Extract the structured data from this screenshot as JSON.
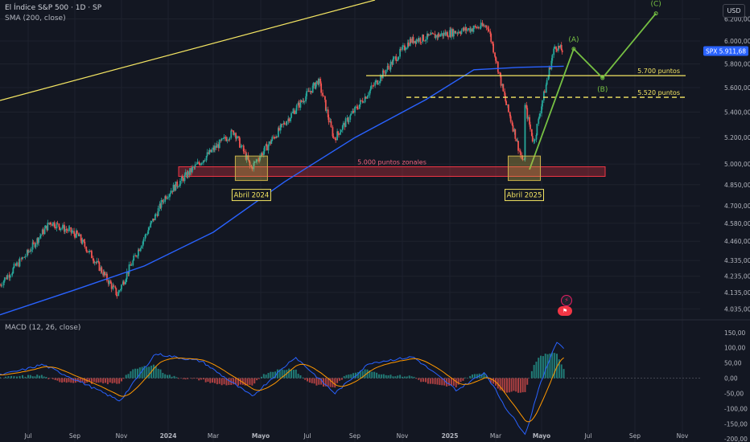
{
  "header": {
    "symbol_title": "El Índice S&P 500 · 1D · SP",
    "sma_label": "SMA (200, close)",
    "macd_label": "MACD (12, 26, close)",
    "currency_button": "USD"
  },
  "icons": {
    "alert": "lightning-icon",
    "event": "flag-icon"
  },
  "colors": {
    "background": "#131722",
    "up_candle": "#26a69a",
    "down_candle": "#ef5350",
    "sma": "#2962ff",
    "support_line": "#f5e663",
    "wave_projection": "#76c043",
    "zone_fill": "#f23645",
    "highlight_box": "#c9b14a",
    "macd_line": "#2962ff",
    "signal_line": "#ff9800"
  },
  "chart_data": {
    "type": "candlestick",
    "price_axis": {
      "ticks": [
        "6.200,00",
        "6.000,00",
        "5.800,00",
        "5.600,00",
        "5.400,00",
        "5.200,00",
        "5.000,00",
        "4.850,00",
        "4.700,00",
        "4.580,00",
        "4.460,00",
        "4.335,00",
        "4.235,00",
        "4.135,00",
        "4.035,00"
      ],
      "log_scale": true,
      "ylim": [
        3970,
        6300
      ]
    },
    "current_price": {
      "symbol": "SPX",
      "value": "5.911,68",
      "numeric": 5911.68
    },
    "time_axis": {
      "ticks": [
        "Jul",
        "Sep",
        "Nov",
        "2024",
        "Mar",
        "Mayo",
        "Jul",
        "Sep",
        "Nov",
        "2025",
        "Mar",
        "Mayo",
        "Jul",
        "Sep",
        "Nov"
      ],
      "range": [
        "2023-06",
        "2025-11"
      ]
    },
    "price_path": [
      [
        "2023-06-01",
        4180
      ],
      [
        "2023-07-31",
        4590
      ],
      [
        "2023-09-05",
        4500
      ],
      [
        "2023-10-27",
        4120
      ],
      [
        "2023-12-29",
        4770
      ],
      [
        "2024-03-28",
        5250
      ],
      [
        "2024-04-19",
        4970
      ],
      [
        "2024-07-16",
        5660
      ],
      [
        "2024-08-05",
        5190
      ],
      [
        "2024-11-11",
        6000
      ],
      [
        "2025-02-19",
        6140
      ],
      [
        "2025-03-13",
        5520
      ],
      [
        "2025-04-08",
        4980
      ],
      [
        "2025-04-09",
        5460
      ],
      [
        "2025-04-21",
        5160
      ],
      [
        "2025-05-19",
        5960
      ],
      [
        "2025-05-30",
        5911.68
      ]
    ],
    "sma_200": [
      [
        "2023-06-01",
        4000
      ],
      [
        "2023-09-01",
        4150
      ],
      [
        "2023-12-01",
        4300
      ],
      [
        "2024-03-01",
        4520
      ],
      [
        "2024-06-01",
        4870
      ],
      [
        "2024-09-01",
        5200
      ],
      [
        "2024-12-01",
        5500
      ],
      [
        "2025-02-01",
        5750
      ],
      [
        "2025-04-01",
        5770
      ],
      [
        "2025-05-30",
        5780
      ]
    ],
    "levels": [
      {
        "label": "5.700 puntos",
        "value": 5700,
        "style": "solid"
      },
      {
        "label": "5.520 puntos",
        "value": 5520,
        "style": "dashed"
      }
    ],
    "zones": [
      {
        "label": "5.000 puntos zonales",
        "from": 4910,
        "to": 4980
      }
    ],
    "annotations": [
      {
        "label": "Abril 2024",
        "date": "2024-04-19"
      },
      {
        "label": "Abril 2025",
        "date": "2025-04-08"
      }
    ],
    "wave_projection": [
      {
        "label": "",
        "date": "2025-04-15",
        "value": 4960
      },
      {
        "label": "(A)",
        "date": "2025-06-12",
        "value": 5930
      },
      {
        "label": "(B)",
        "date": "2025-07-20",
        "value": 5680
      },
      {
        "label": "(C)",
        "date": "2025-09-28",
        "value": 6250
      }
    ],
    "macd": {
      "params": "12, 26, close",
      "axis_ticks": [
        "150,00",
        "100,00",
        "50,00",
        "0,00",
        "-50,00",
        "-100,00",
        "-150,00",
        "-200,00"
      ],
      "ylim": [
        -210,
        160
      ],
      "path": [
        [
          "2023-06-01",
          10
        ],
        [
          "2023-07-20",
          45
        ],
        [
          "2023-09-15",
          -20
        ],
        [
          "2023-10-30",
          -75
        ],
        [
          "2023-12-15",
          80
        ],
        [
          "2024-02-15",
          55
        ],
        [
          "2024-04-20",
          -60
        ],
        [
          "2024-06-15",
          70
        ],
        [
          "2024-08-06",
          -50
        ],
        [
          "2024-09-20",
          50
        ],
        [
          "2024-11-15",
          70
        ],
        [
          "2025-01-10",
          -40
        ],
        [
          "2025-02-15",
          20
        ],
        [
          "2025-03-15",
          -100
        ],
        [
          "2025-04-10",
          -185
        ],
        [
          "2025-04-25",
          -50
        ],
        [
          "2025-05-20",
          120
        ],
        [
          "2025-05-30",
          100
        ]
      ]
    }
  }
}
